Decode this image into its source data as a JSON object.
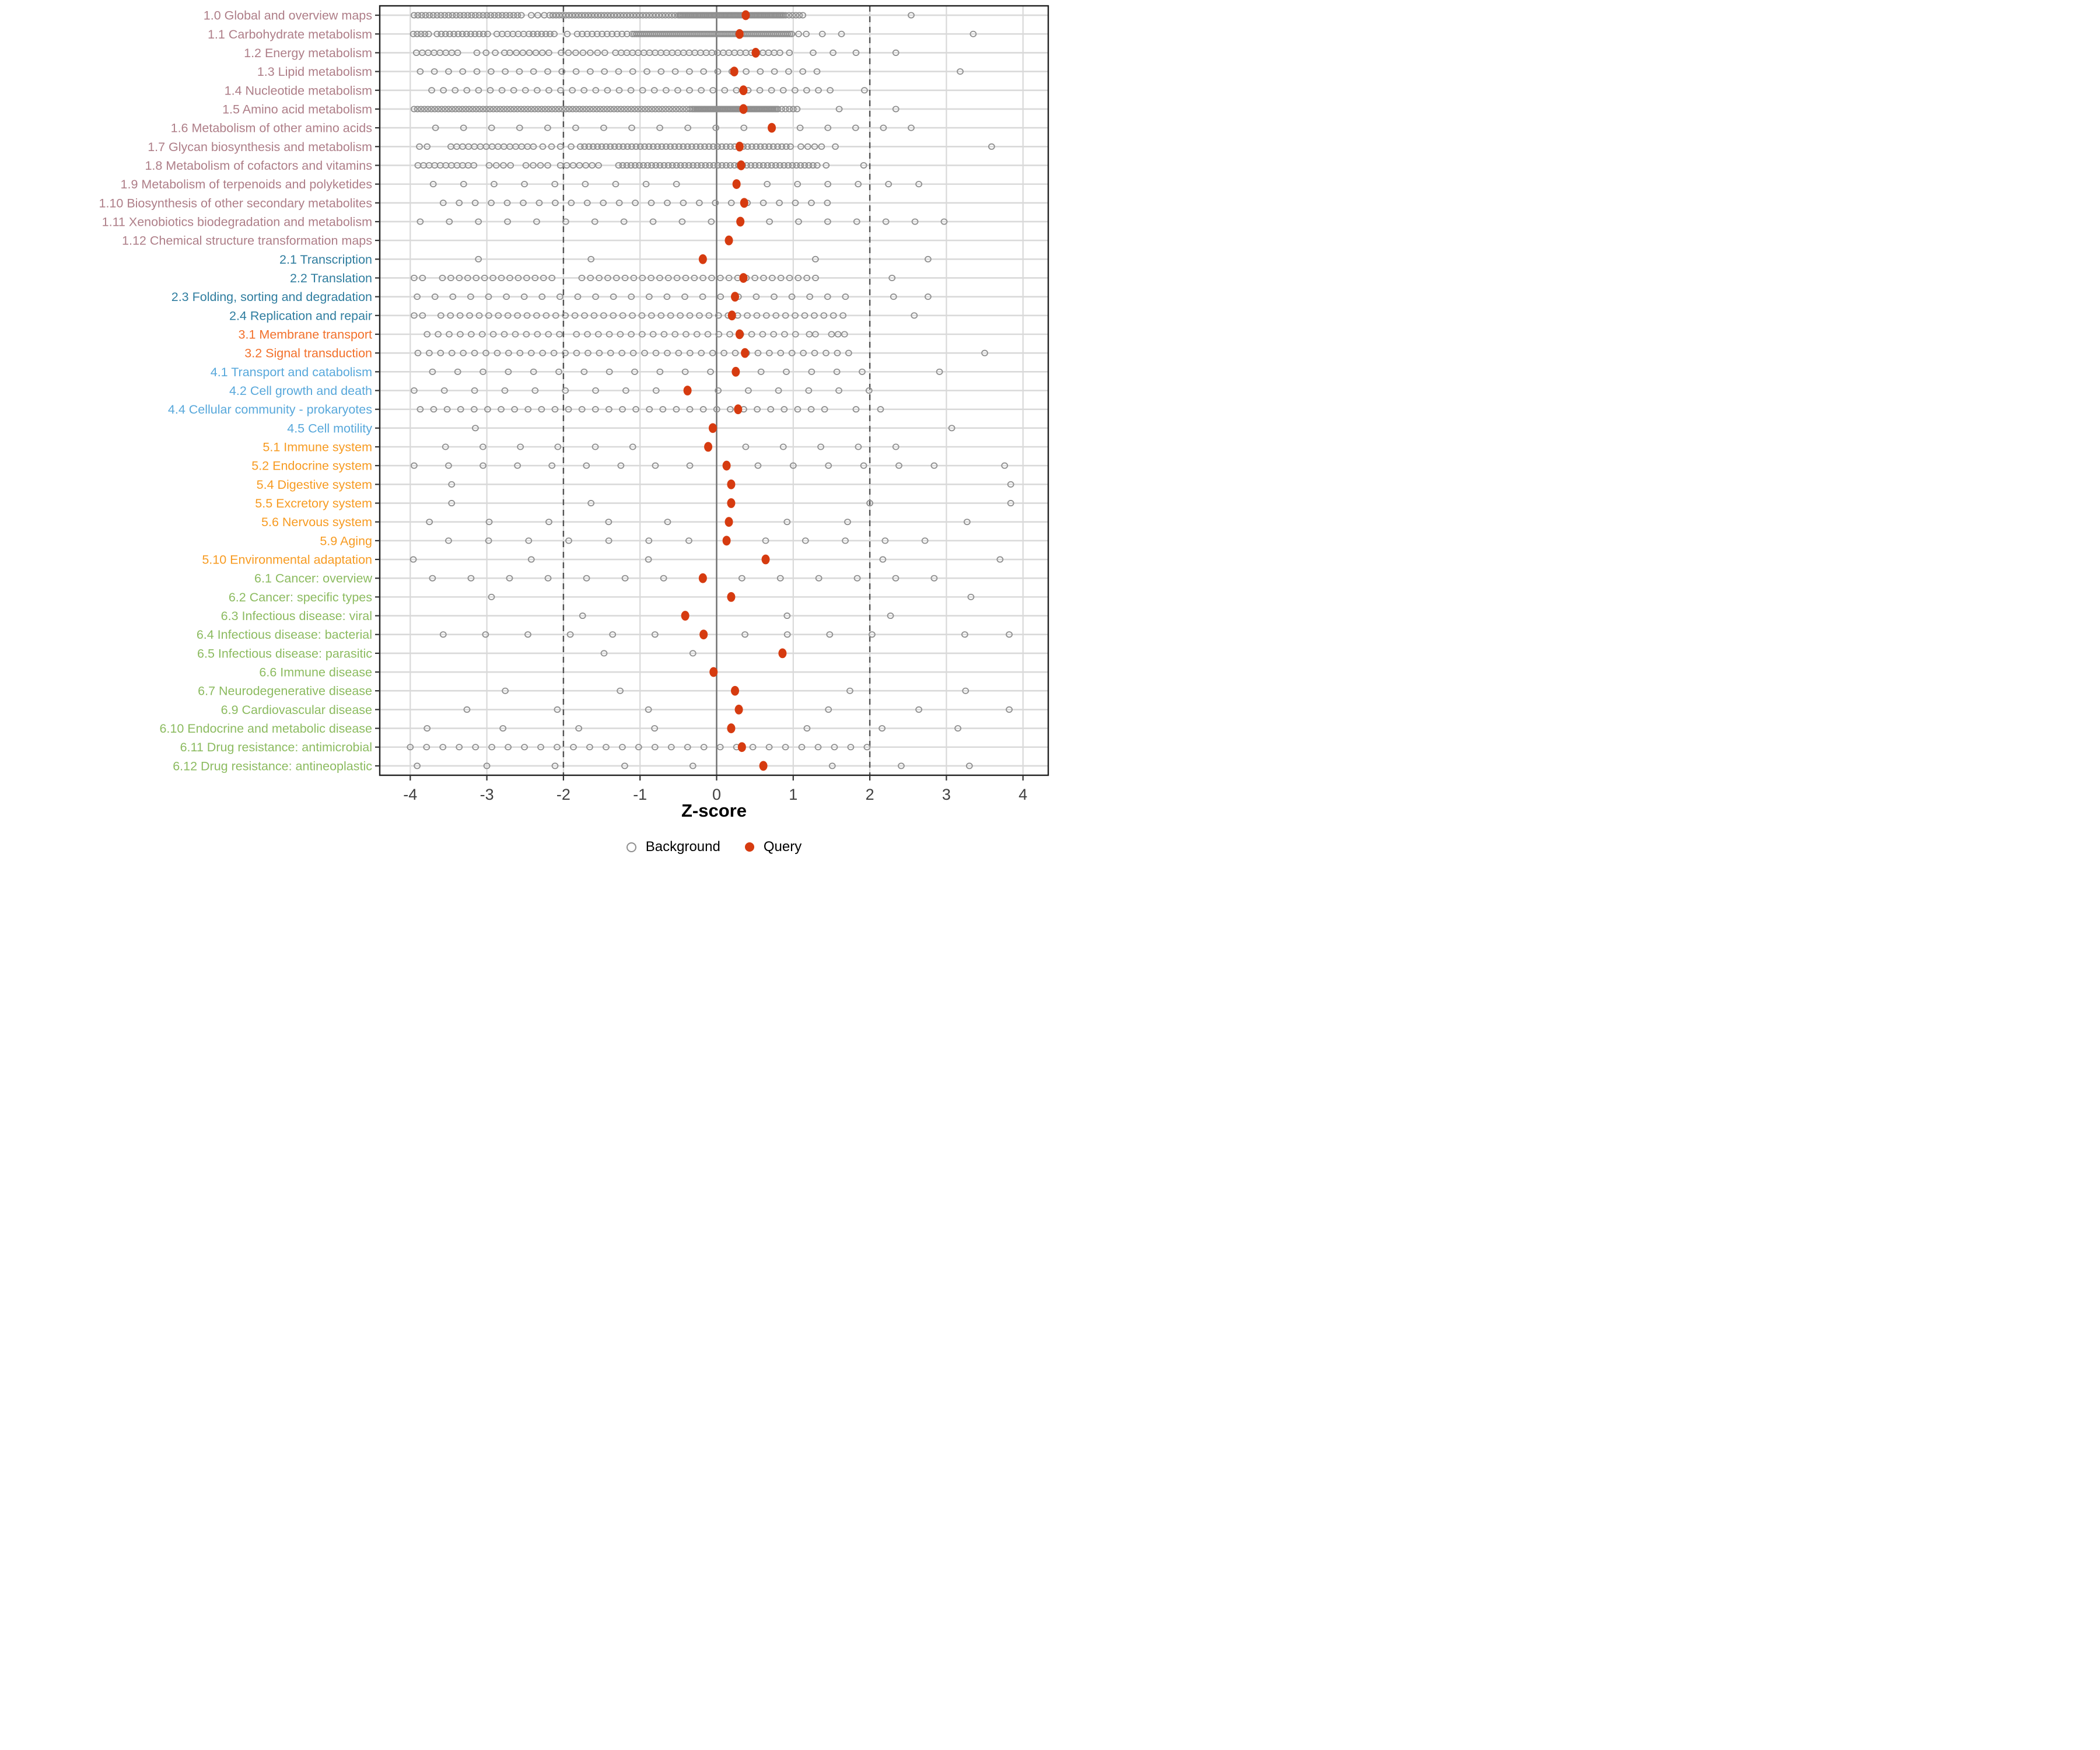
{
  "figure": {
    "x_axis_title": "Z-score"
  },
  "legend": {
    "background_label": "Background",
    "query_label": "Query"
  },
  "colors": {
    "background_stroke": "#8f8f8f",
    "query_fill": "#d63b10",
    "grid_light": "#d9d9d9",
    "panel_border": "#1f1f1f",
    "zero_line": "#6e6e6e",
    "dashed_line": "#545454",
    "tick_text": "#404040",
    "group_colors": {
      "g1": "#ae7e88",
      "g2": "#2f7d9f",
      "g3": "#f2702a",
      "g4": "#58a8db",
      "g5": "#f79b22",
      "g6": "#8cbb60"
    }
  },
  "chart_data": {
    "type": "scatter",
    "subtype": "strip-dot-plot",
    "title": "",
    "xlabel": "Z-score",
    "ylabel": "",
    "xlim": [
      -4.38,
      4.34
    ],
    "x_ticks": [
      -4,
      -3,
      -2,
      -1,
      0,
      1,
      2,
      3,
      4
    ],
    "zero_ref": 0,
    "dashed_refs": [
      -2,
      2
    ],
    "grid": true,
    "legend_position": "bottom",
    "legend_entries": [
      "Background",
      "Query"
    ],
    "rows": [
      {
        "label": "1.0 Global and overview maps",
        "group": "g1",
        "query": 0.38,
        "bg_segments": [
          [
            -3.95,
            -2.55,
            0.05
          ],
          [
            -2.42,
            -2.25,
            0.085
          ],
          [
            -2.18,
            -0.5,
            0.042
          ],
          [
            -0.48,
            0.88,
            0.018
          ],
          [
            0.9,
            1.16,
            0.045
          ]
        ],
        "bg_points": [
          2.54
        ]
      },
      {
        "label": "1.1 Carbohydrate metabolism",
        "group": "g1",
        "query": 0.3,
        "bg_segments": [
          [
            -3.96,
            -3.76,
            0.05
          ],
          [
            -3.65,
            -2.95,
            0.055
          ],
          [
            -2.87,
            -2.52,
            0.07
          ],
          [
            -2.45,
            -2.08,
            0.055
          ],
          [
            -1.82,
            -1.15,
            0.065
          ],
          [
            -1.1,
            0.98,
            0.026
          ]
        ],
        "bg_points": [
          -1.95,
          1.07,
          1.17,
          1.38,
          1.63,
          3.35
        ]
      },
      {
        "label": "1.2 Energy metabolism",
        "group": "g1",
        "query": 0.51,
        "bg_segments": [
          [
            -3.92,
            -3.38,
            0.077
          ],
          [
            -3.13,
            -2.77,
            0.12
          ],
          [
            -2.7,
            -2.19,
            0.085
          ],
          [
            -2.03,
            -1.46,
            0.095
          ],
          [
            -1.32,
            0.86,
            0.074
          ]
        ],
        "bg_points": [
          0.95,
          1.26,
          1.52,
          1.82,
          2.34
        ]
      },
      {
        "label": "1.3 Lipid metabolism",
        "group": "g1",
        "query": 0.23,
        "bg_segments": [
          [
            -3.87,
            1.32,
            0.185
          ]
        ],
        "bg_points": [
          3.18
        ]
      },
      {
        "label": "1.4 Nucleotide metabolism",
        "group": "g1",
        "query": 0.35,
        "bg_segments": [
          [
            -3.72,
            1.63,
            0.153
          ]
        ],
        "bg_points": [
          1.93
        ]
      },
      {
        "label": "1.5 Amino acid metabolism",
        "group": "g1",
        "query": 0.35,
        "bg_segments": [
          [
            -3.95,
            -0.35,
            0.045
          ],
          [
            -0.32,
            0.78,
            0.02
          ],
          [
            0.8,
            1.08,
            0.05
          ]
        ],
        "bg_points": [
          1.6,
          2.34
        ]
      },
      {
        "label": "1.6 Metabolism of other amino acids",
        "group": "g1",
        "query": 0.72,
        "bg_segments": [
          [
            -3.67,
            0.36,
            0.366
          ],
          [
            1.09,
            2.54,
            0.3625
          ]
        ],
        "bg_points": []
      },
      {
        "label": "1.7 Glycan biosynthesis and metabolism",
        "group": "g1",
        "query": 0.3,
        "bg_segments": [
          [
            -3.88,
            -3.78,
            0.1
          ],
          [
            -3.47,
            -2.39,
            0.077
          ],
          [
            -2.27,
            -2.04,
            0.115
          ],
          [
            -1.78,
            1.0,
            0.056
          ],
          [
            1.1,
            1.37,
            0.09
          ]
        ],
        "bg_points": [
          -1.9,
          1.55,
          3.59
        ]
      },
      {
        "label": "1.8 Metabolism of cofactors and vitamins",
        "group": "g1",
        "query": 0.32,
        "bg_segments": [
          [
            -3.9,
            -3.1,
            0.073
          ],
          [
            -2.97,
            -2.6,
            0.093
          ],
          [
            -2.49,
            -2.2,
            0.095
          ],
          [
            -2.04,
            -1.46,
            0.083
          ],
          [
            -1.28,
            1.32,
            0.054
          ]
        ],
        "bg_points": [
          1.43,
          1.92
        ]
      },
      {
        "label": "1.9 Metabolism of terpenoids and polyketides",
        "group": "g1",
        "query": 0.26,
        "bg_segments": [
          [
            -3.7,
            -0.13,
            0.397
          ],
          [
            0.66,
            2.64,
            0.396
          ]
        ],
        "bg_points": []
      },
      {
        "label": "1.10 Biosynthesis of other secondary metabolites",
        "group": "g1",
        "query": 0.36,
        "bg_segments": [
          [
            -3.57,
            1.64,
            0.209
          ]
        ],
        "bg_points": []
      },
      {
        "label": "1.11 Xenobiotics biodegradation and metabolism",
        "group": "g1",
        "query": 0.31,
        "bg_segments": [
          [
            -3.87,
            -0.07,
            0.38
          ],
          [
            0.69,
            2.97,
            0.38
          ]
        ],
        "bg_points": []
      },
      {
        "label": "1.12 Chemical structure transformation maps",
        "group": "g1",
        "query": 0.16,
        "bg_segments": [],
        "bg_points": []
      },
      {
        "label": "2.1 Transcription",
        "group": "g2",
        "query": -0.18,
        "bg_segments": [],
        "bg_points": [
          -3.11,
          -1.64,
          1.29,
          2.76
        ]
      },
      {
        "label": "2.2 Translation",
        "group": "g2",
        "query": 0.35,
        "bg_segments": [
          [
            -3.58,
            -2.05,
            0.11
          ],
          [
            -1.76,
            1.32,
            0.113
          ]
        ],
        "bg_points": [
          -3.95,
          -3.84,
          2.29
        ]
      },
      {
        "label": "2.3 Folding, sorting and degradation",
        "group": "g2",
        "query": 0.24,
        "bg_segments": [
          [
            -3.91,
            1.86,
            0.233
          ]
        ],
        "bg_points": [
          2.31,
          2.76
        ]
      },
      {
        "label": "2.4 Replication and repair",
        "group": "g2",
        "query": 0.2,
        "bg_segments": [
          [
            -3.6,
            1.72,
            0.125
          ]
        ],
        "bg_points": [
          -3.95,
          -3.84,
          2.58
        ]
      },
      {
        "label": "3.1 Membrane transport",
        "group": "g3",
        "query": 0.3,
        "bg_segments": [
          [
            -3.78,
            -2.05,
            0.144
          ],
          [
            -1.83,
            1.04,
            0.143
          ],
          [
            1.5,
            1.67,
            0.085
          ]
        ],
        "bg_points": [
          1.21,
          1.29
        ]
      },
      {
        "label": "3.2 Signal transduction",
        "group": "g3",
        "query": 0.37,
        "bg_segments": [
          [
            -3.9,
            1.86,
            0.148
          ]
        ],
        "bg_points": [
          3.5
        ]
      },
      {
        "label": "4.1 Transport and catabolism",
        "group": "g4",
        "query": 0.25,
        "bg_segments": [
          [
            -3.71,
            -0.08,
            0.33
          ],
          [
            0.58,
            1.9,
            0.33
          ]
        ],
        "bg_points": [
          2.91
        ]
      },
      {
        "label": "4.2 Cell growth and death",
        "group": "g4",
        "query": -0.38,
        "bg_segments": [
          [
            -3.95,
            -0.79,
            0.395
          ],
          [
            0.02,
            1.99,
            0.394
          ]
        ],
        "bg_points": []
      },
      {
        "label": "4.4 Cellular community - prokaryotes",
        "group": "g4",
        "query": 0.28,
        "bg_segments": [
          [
            -3.87,
            1.49,
            0.176
          ]
        ],
        "bg_points": [
          1.82,
          2.14
        ]
      },
      {
        "label": "4.5 Cell motility",
        "group": "g4",
        "query": -0.05,
        "bg_segments": [],
        "bg_points": [
          -3.15,
          3.07
        ]
      },
      {
        "label": "5.1 Immune system",
        "group": "g5",
        "query": -0.11,
        "bg_segments": [
          [
            -3.54,
            -0.61,
            0.489
          ],
          [
            0.38,
            2.34,
            0.49
          ]
        ],
        "bg_points": []
      },
      {
        "label": "5.2 Endocrine system",
        "group": "g5",
        "query": 0.13,
        "bg_segments": [
          [
            -3.95,
            -0.35,
            0.45
          ],
          [
            0.54,
            2.84,
            0.46
          ]
        ],
        "bg_points": [
          3.76
        ]
      },
      {
        "label": "5.4 Digestive system",
        "group": "g5",
        "query": 0.19,
        "bg_segments": [],
        "bg_points": [
          -3.46,
          3.84
        ]
      },
      {
        "label": "5.5 Excretory system",
        "group": "g5",
        "query": 0.19,
        "bg_segments": [],
        "bg_points": [
          -3.46,
          -1.64,
          2.0,
          3.84
        ]
      },
      {
        "label": "5.6 Nervous system",
        "group": "g5",
        "query": 0.16,
        "bg_segments": [],
        "bg_points": [
          -3.75,
          -2.97,
          -2.19,
          -1.41,
          -0.64,
          0.92,
          1.71,
          3.27
        ]
      },
      {
        "label": "5.9 Aging",
        "group": "g5",
        "query": 0.13,
        "bg_segments": [
          [
            -3.5,
            -0.36,
            0.523
          ],
          [
            0.64,
            2.72,
            0.52
          ]
        ],
        "bg_points": []
      },
      {
        "label": "5.10 Environmental adaptation",
        "group": "g5",
        "query": 0.64,
        "bg_segments": [],
        "bg_points": [
          -3.96,
          -2.42,
          -0.89,
          2.17,
          3.7
        ]
      },
      {
        "label": "6.1 Cancer: overview",
        "group": "g6",
        "query": -0.18,
        "bg_segments": [
          [
            -3.71,
            -0.69,
            0.503
          ],
          [
            0.33,
            3.34,
            0.502
          ]
        ],
        "bg_points": []
      },
      {
        "label": "6.2 Cancer: specific types",
        "group": "g6",
        "query": 0.19,
        "bg_segments": [],
        "bg_points": [
          -2.94,
          3.32
        ]
      },
      {
        "label": "6.3 Infectious disease: viral",
        "group": "g6",
        "query": -0.41,
        "bg_segments": [],
        "bg_points": [
          -1.75,
          0.92,
          2.27
        ]
      },
      {
        "label": "6.4 Infectious disease: bacterial",
        "group": "g6",
        "query": -0.17,
        "bg_segments": [
          [
            -3.57,
            -0.8,
            0.553
          ],
          [
            0.37,
            2.03,
            0.553
          ]
        ],
        "bg_points": [
          3.24,
          3.82
        ]
      },
      {
        "label": "6.5 Infectious disease: parasitic",
        "group": "g6",
        "query": 0.86,
        "bg_segments": [],
        "bg_points": [
          -1.47,
          -0.31
        ]
      },
      {
        "label": "6.6 Immune disease",
        "group": "g6",
        "query": -0.04,
        "bg_segments": [],
        "bg_points": []
      },
      {
        "label": "6.7 Neurodegenerative disease",
        "group": "g6",
        "query": 0.24,
        "bg_segments": [],
        "bg_points": [
          -2.76,
          -1.26,
          1.74,
          3.25
        ]
      },
      {
        "label": "6.9 Cardiovascular disease",
        "group": "g6",
        "query": 0.29,
        "bg_segments": [],
        "bg_points": [
          -3.26,
          -2.08,
          -0.89,
          1.46,
          2.64,
          3.82
        ]
      },
      {
        "label": "6.10 Endocrine and metabolic disease",
        "group": "g6",
        "query": 0.19,
        "bg_segments": [],
        "bg_points": [
          -3.78,
          -2.79,
          -1.8,
          -0.81,
          1.18,
          2.16,
          3.15
        ]
      },
      {
        "label": "6.11 Drug resistance: antimicrobial",
        "group": "g6",
        "query": 0.33,
        "bg_segments": [
          [
            -4.0,
            2.17,
            0.213
          ]
        ],
        "bg_points": []
      },
      {
        "label": "6.12 Drug resistance: antineoplastic",
        "group": "g6",
        "query": 0.61,
        "bg_segments": [],
        "bg_points": [
          -3.91,
          -3.0,
          -2.11,
          -1.2,
          -0.31,
          1.51,
          2.41,
          3.3
        ]
      }
    ]
  }
}
